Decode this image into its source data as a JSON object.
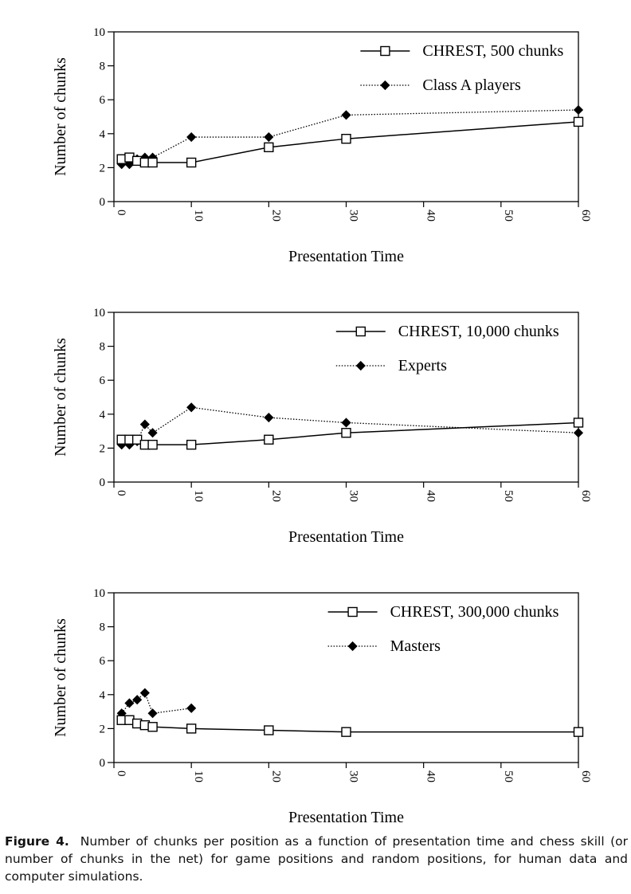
{
  "chart_data": [
    {
      "type": "line",
      "ylabel": "Number of chunks",
      "xlabel": "Presentation Time",
      "ylim": [
        0,
        10
      ],
      "yticks": [
        0,
        2,
        4,
        6,
        8,
        10
      ],
      "xticks": [
        0,
        10,
        20,
        30,
        40,
        50,
        60
      ],
      "legend_position": "top-right",
      "series": [
        {
          "name": "CHREST, 500 chunks",
          "style": "solid-open-square",
          "x": [
            1,
            2,
            3,
            4,
            5,
            10,
            20,
            30,
            60
          ],
          "y": [
            2.5,
            2.6,
            2.4,
            2.3,
            2.3,
            2.3,
            3.2,
            3.7,
            4.7
          ]
        },
        {
          "name": "Class A players",
          "style": "dotted-filled-diamond",
          "x": [
            1,
            2,
            3,
            4,
            5,
            10,
            20,
            30,
            60
          ],
          "y": [
            2.2,
            2.2,
            2.5,
            2.6,
            2.6,
            3.8,
            3.8,
            5.1,
            5.4
          ]
        }
      ]
    },
    {
      "type": "line",
      "ylabel": "Number of chunks",
      "xlabel": "Presentation Time",
      "ylim": [
        0,
        10
      ],
      "yticks": [
        0,
        2,
        4,
        6,
        8,
        10
      ],
      "xticks": [
        0,
        10,
        20,
        30,
        40,
        50,
        60
      ],
      "legend_position": "top-right",
      "series": [
        {
          "name": "CHREST, 10,000 chunks",
          "style": "solid-open-square",
          "x": [
            1,
            2,
            3,
            4,
            5,
            10,
            20,
            30,
            60
          ],
          "y": [
            2.5,
            2.5,
            2.5,
            2.2,
            2.2,
            2.2,
            2.5,
            2.9,
            3.5
          ]
        },
        {
          "name": "Experts",
          "style": "dotted-filled-diamond",
          "x": [
            1,
            2,
            3,
            4,
            5,
            10,
            20,
            30,
            60
          ],
          "y": [
            2.2,
            2.2,
            2.4,
            3.4,
            2.9,
            4.4,
            3.8,
            3.5,
            2.9
          ]
        }
      ]
    },
    {
      "type": "line",
      "ylabel": "Number of chunks",
      "xlabel": "Presentation Time",
      "ylim": [
        0,
        10
      ],
      "yticks": [
        0,
        2,
        4,
        6,
        8,
        10
      ],
      "xticks": [
        0,
        10,
        20,
        30,
        40,
        50,
        60
      ],
      "legend_position": "top-right",
      "series": [
        {
          "name": "CHREST, 300,000 chunks",
          "style": "solid-open-square",
          "x": [
            1,
            2,
            3,
            4,
            5,
            10,
            20,
            30,
            60
          ],
          "y": [
            2.5,
            2.5,
            2.3,
            2.2,
            2.1,
            2.0,
            1.9,
            1.8,
            1.8
          ]
        },
        {
          "name": "Masters",
          "style": "dotted-filled-diamond",
          "x": [
            1,
            2,
            3,
            4,
            5,
            10
          ],
          "y": [
            2.9,
            3.5,
            3.7,
            4.1,
            2.9,
            3.2
          ]
        }
      ]
    }
  ],
  "caption": {
    "label": "Figure 4.",
    "text": "Number of chunks per position as a function of presentation time and chess skill (or number of chunks in the net) for game positions and random positions, for human data and computer simulations."
  }
}
